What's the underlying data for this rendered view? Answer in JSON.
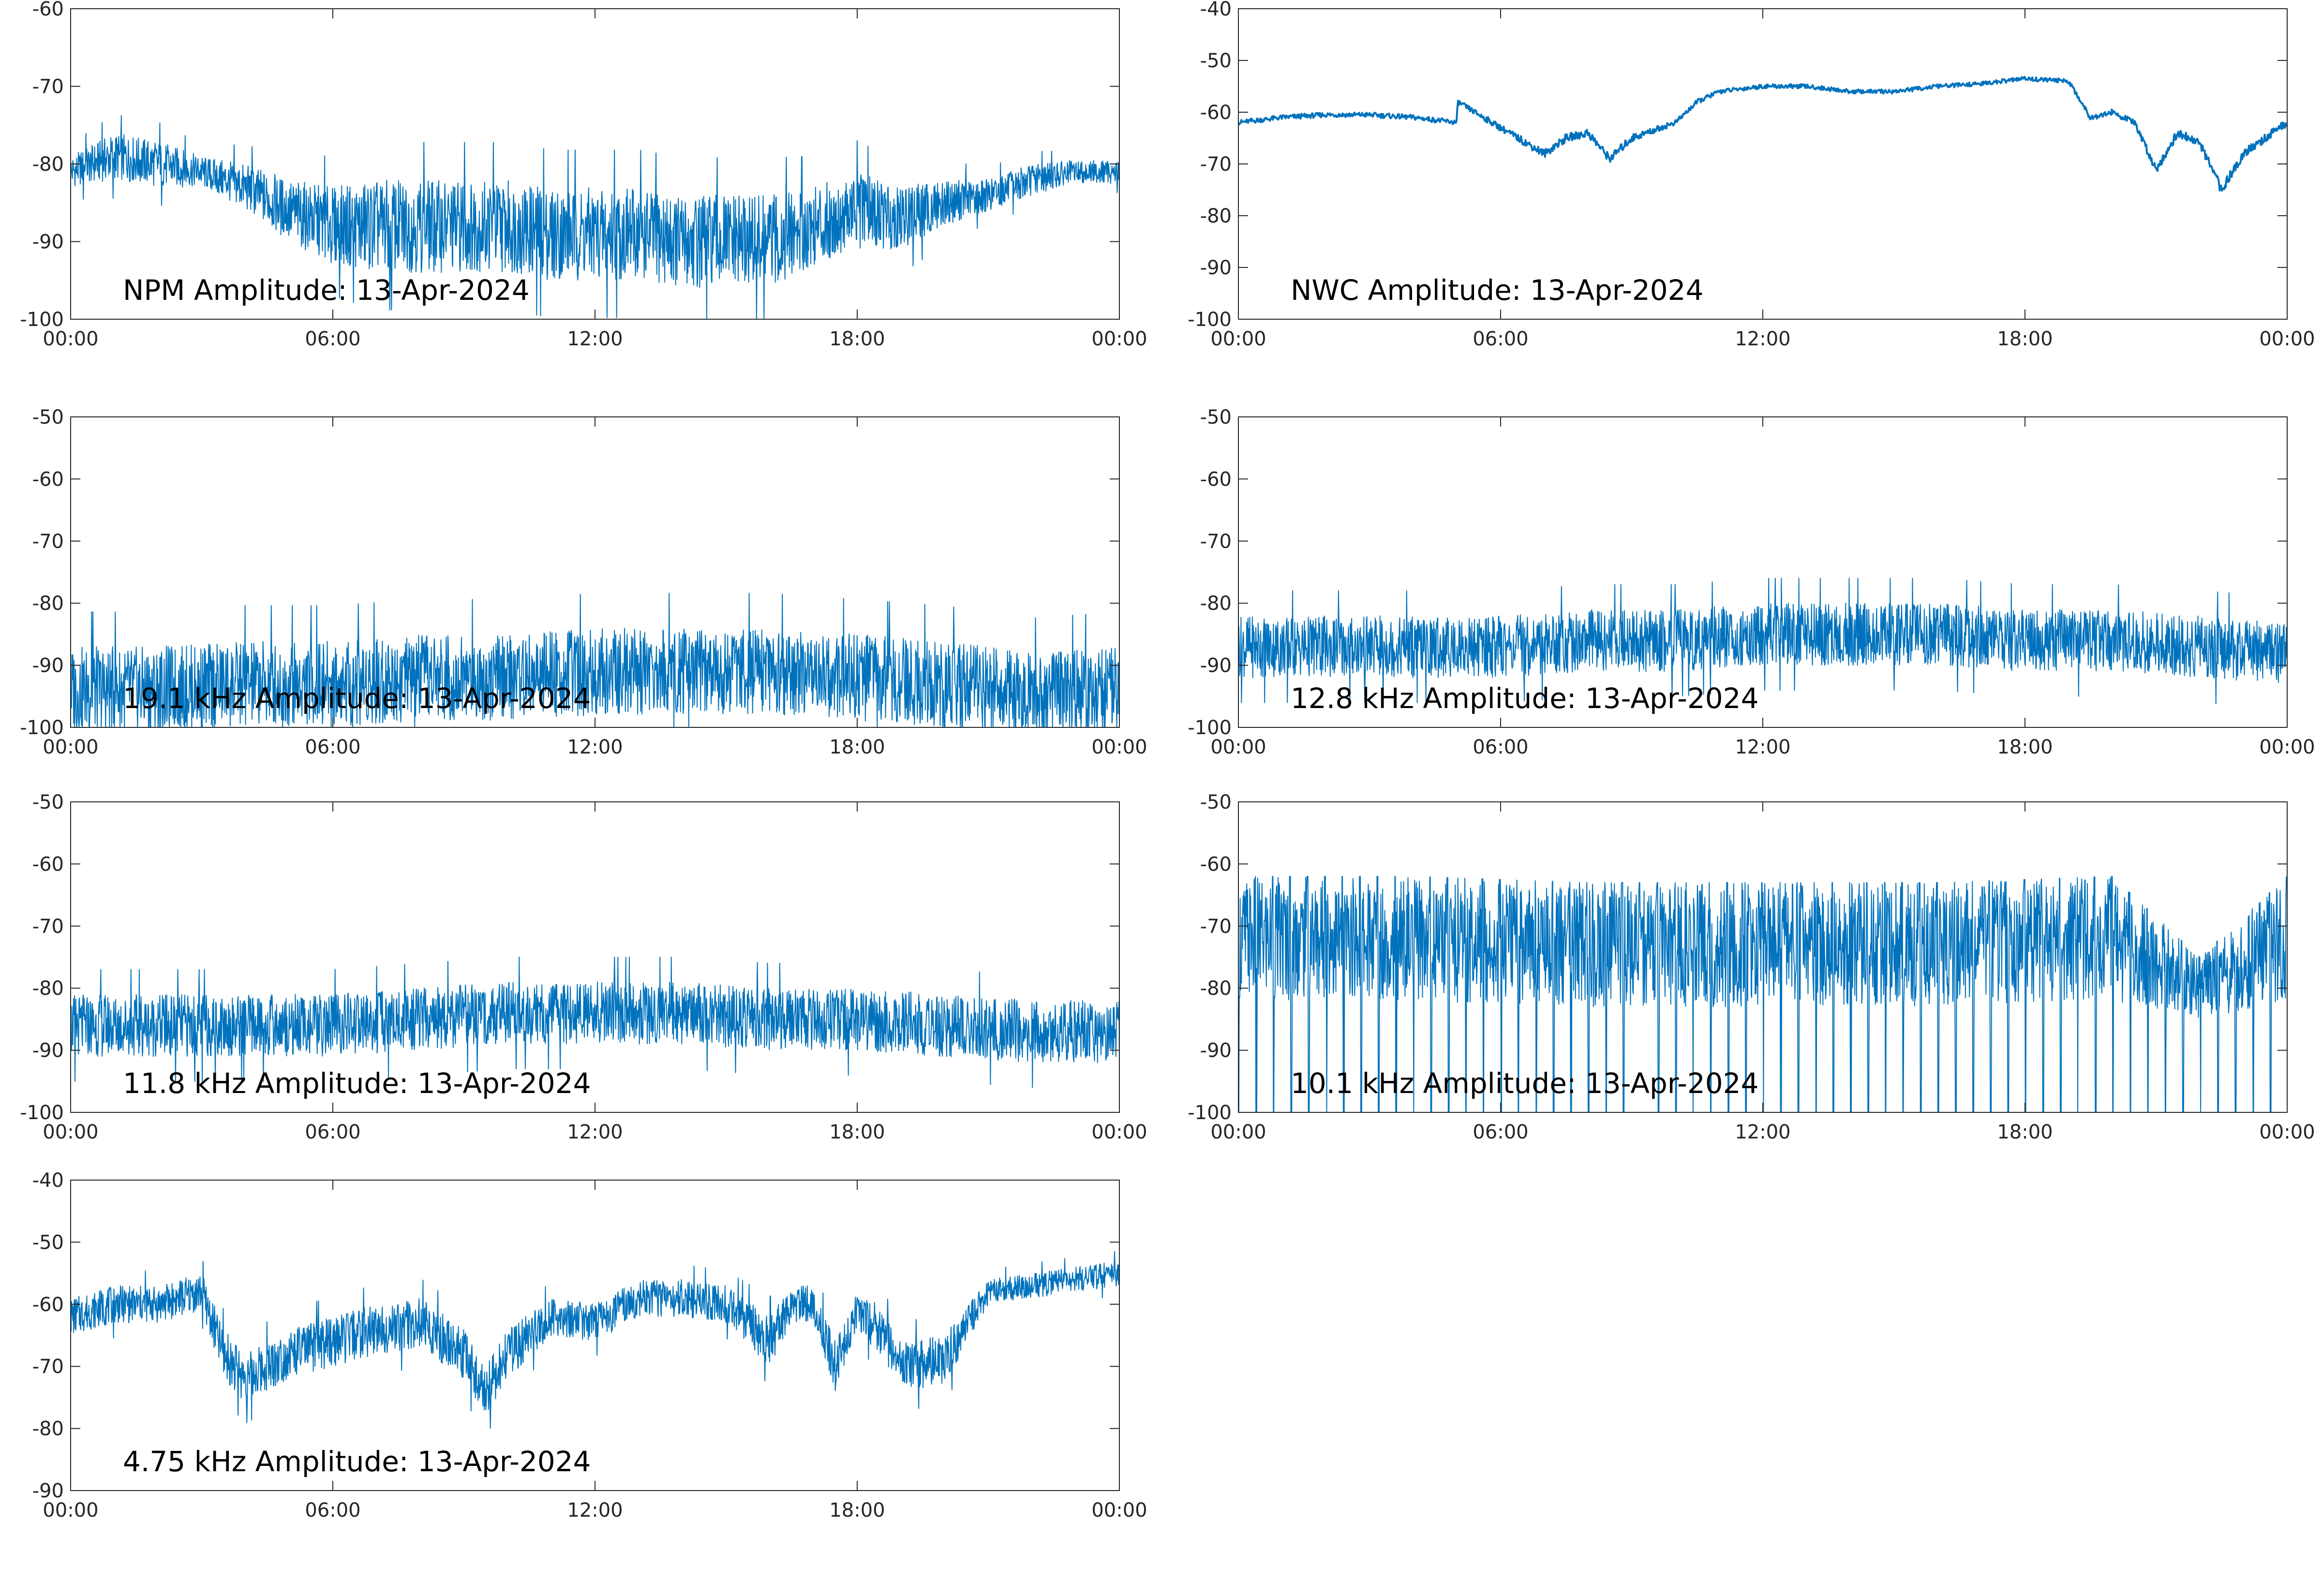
{
  "figure": {
    "series_color": "#0072BD",
    "axes_color": "#262626",
    "background": "#FFFFFF",
    "xtick_labels": [
      "00:00",
      "06:00",
      "12:00",
      "18:00",
      "00:00"
    ]
  },
  "chart_data": [
    {
      "type": "line",
      "title": "NPM Amplitude: 13-Apr-2024",
      "xlabel": "",
      "ylabel": "",
      "xlim": [
        "00:00",
        "24:00"
      ],
      "ylim": [
        -100,
        -60
      ],
      "yticks": [
        -100,
        -90,
        -80,
        -70,
        -60
      ],
      "grid": false,
      "style": "noisy-dense",
      "series": [
        {
          "x": [
            "00:00",
            "01:00",
            "02:00",
            "03:00",
            "04:00",
            "05:00",
            "06:00",
            "07:00",
            "08:00",
            "09:00",
            "10:00",
            "11:00",
            "12:00",
            "13:00",
            "14:00",
            "15:00",
            "16:00",
            "17:00",
            "18:00",
            "19:00",
            "20:00",
            "21:00",
            "22:00",
            "23:00",
            "24:00"
          ],
          "values": [
            -81,
            -79,
            -80,
            -81,
            -83,
            -86,
            -88,
            -88,
            -88,
            -88,
            -88,
            -89,
            -89,
            -89,
            -90,
            -90,
            -90,
            -88,
            -86,
            -87,
            -85,
            -84,
            -82,
            -81,
            -81
          ],
          "spread": [
            2,
            3,
            3,
            2,
            3,
            4,
            5,
            6,
            6,
            6,
            6,
            6,
            6,
            6,
            6,
            6,
            6,
            5,
            5,
            4,
            3,
            2,
            2,
            1.5,
            1.5
          ]
        }
      ]
    },
    {
      "type": "line",
      "title": "NWC Amplitude: 13-Apr-2024",
      "xlabel": "",
      "ylabel": "",
      "xlim": [
        "00:00",
        "24:00"
      ],
      "ylim": [
        -100,
        -40
      ],
      "yticks": [
        -100,
        -90,
        -80,
        -70,
        -60,
        -50,
        -40
      ],
      "grid": false,
      "style": "smooth",
      "series": [
        {
          "x": [
            "00:00",
            "01:00",
            "02:00",
            "03:00",
            "04:00",
            "05:00",
            "05:01",
            "06:00",
            "07:00",
            "07:30",
            "08:00",
            "08:30",
            "09:00",
            "10:00",
            "10:30",
            "11:00",
            "12:00",
            "13:00",
            "14:00",
            "15:00",
            "16:00",
            "17:00",
            "18:00",
            "19:00",
            "19:30",
            "20:00",
            "20:30",
            "21:00",
            "21:30",
            "22:00",
            "22:30",
            "23:00",
            "24:00"
          ],
          "values": [
            -62,
            -61,
            -60.5,
            -60.5,
            -61,
            -62,
            -58,
            -63,
            -68,
            -65,
            -64,
            -69,
            -65,
            -62,
            -58,
            -56,
            -55,
            -55,
            -56,
            -56,
            -55,
            -54.5,
            -53.5,
            -54,
            -61,
            -60,
            -62,
            -71,
            -64,
            -66,
            -75,
            -68,
            -62
          ],
          "spread": [
            0.6,
            0.6,
            0.6,
            0.6,
            0.6,
            0.6,
            0.6,
            0.8,
            1,
            1,
            1,
            1,
            1,
            0.6,
            0.6,
            0.5,
            0.5,
            0.5,
            0.5,
            0.5,
            0.5,
            0.5,
            0.5,
            0.5,
            0.7,
            0.7,
            0.7,
            1.2,
            1,
            1,
            1.2,
            1,
            1
          ]
        }
      ]
    },
    {
      "type": "line",
      "title": "19.1 kHz Amplitude: 13-Apr-2024",
      "xlabel": "",
      "ylabel": "",
      "xlim": [
        "00:00",
        "24:00"
      ],
      "ylim": [
        -100,
        -50
      ],
      "yticks": [
        -100,
        -90,
        -80,
        -70,
        -60,
        -50
      ],
      "grid": false,
      "style": "noisy-dense",
      "series": [
        {
          "x": [
            "00:00",
            "02:00",
            "04:00",
            "06:00",
            "08:00",
            "10:00",
            "12:00",
            "14:00",
            "16:00",
            "18:00",
            "20:00",
            "22:00",
            "24:00"
          ],
          "values": [
            -94,
            -94,
            -93,
            -93,
            -92,
            -92,
            -91,
            -91,
            -91,
            -92,
            -93,
            -95,
            -94
          ],
          "spread": [
            7,
            7,
            7,
            7,
            7,
            7,
            7,
            7,
            7,
            7,
            7,
            7,
            7
          ]
        }
      ]
    },
    {
      "type": "line",
      "title": "12.8 kHz Amplitude: 13-Apr-2024",
      "xlabel": "",
      "ylabel": "",
      "xlim": [
        "00:00",
        "24:00"
      ],
      "ylim": [
        -100,
        -50
      ],
      "yticks": [
        -100,
        -90,
        -80,
        -70,
        -60,
        -50
      ],
      "grid": false,
      "style": "noisy-dense",
      "series": [
        {
          "x": [
            "00:00",
            "02:00",
            "04:00",
            "06:00",
            "08:00",
            "10:00",
            "12:00",
            "14:00",
            "16:00",
            "18:00",
            "20:00",
            "22:00",
            "24:00"
          ],
          "values": [
            -87,
            -87,
            -87,
            -87,
            -86,
            -86,
            -85,
            -85,
            -85,
            -86,
            -86,
            -87,
            -88
          ],
          "spread": [
            5,
            5,
            5,
            5,
            5,
            5,
            5,
            5,
            5,
            5,
            5,
            5,
            5
          ]
        }
      ]
    },
    {
      "type": "line",
      "title": "11.8 kHz Amplitude: 13-Apr-2024",
      "xlabel": "",
      "ylabel": "",
      "xlim": [
        "00:00",
        "24:00"
      ],
      "ylim": [
        -100,
        -50
      ],
      "yticks": [
        -100,
        -90,
        -80,
        -70,
        -60,
        -50
      ],
      "grid": false,
      "style": "noisy-dense",
      "series": [
        {
          "x": [
            "00:00",
            "02:00",
            "04:00",
            "06:00",
            "08:00",
            "10:00",
            "12:00",
            "14:00",
            "16:00",
            "18:00",
            "20:00",
            "22:00",
            "24:00"
          ],
          "values": [
            -86,
            -86,
            -86,
            -86,
            -85,
            -84,
            -84,
            -84,
            -85,
            -85,
            -86,
            -87,
            -87
          ],
          "spread": [
            5,
            5,
            5,
            5,
            5,
            5,
            5,
            5,
            5,
            5,
            5,
            5,
            5
          ]
        }
      ]
    },
    {
      "type": "line",
      "title": "10.1 kHz Amplitude: 13-Apr-2024",
      "xlabel": "",
      "ylabel": "",
      "xlim": [
        "00:00",
        "24:00"
      ],
      "ylim": [
        -100,
        -50
      ],
      "yticks": [
        -100,
        -90,
        -80,
        -70,
        -60,
        -50
      ],
      "grid": false,
      "style": "bursty",
      "series": [
        {
          "x": [
            "00:00",
            "04:00",
            "08:00",
            "12:00",
            "16:00",
            "20:00",
            "22:00",
            "24:00"
          ],
          "values": [
            -72,
            -72,
            -73,
            -73,
            -73,
            -72,
            -80,
            -72
          ],
          "spread": [
            10,
            10,
            10,
            10,
            10,
            10,
            5,
            10
          ]
        }
      ]
    },
    {
      "type": "line",
      "title": "4.75 kHz Amplitude: 13-Apr-2024",
      "xlabel": "",
      "ylabel": "",
      "xlim": [
        "00:00",
        "24:00"
      ],
      "ylim": [
        -90,
        -40
      ],
      "yticks": [
        -90,
        -80,
        -70,
        -60,
        -50,
        -40
      ],
      "grid": false,
      "style": "noisy-dense",
      "series": [
        {
          "x": [
            "00:00",
            "01:00",
            "02:00",
            "03:00",
            "03:30",
            "04:00",
            "05:00",
            "06:00",
            "07:00",
            "08:00",
            "09:00",
            "09:30",
            "10:00",
            "11:00",
            "12:00",
            "13:00",
            "14:00",
            "15:00",
            "16:00",
            "16:30",
            "17:00",
            "17:30",
            "18:00",
            "18:30",
            "19:00",
            "20:00",
            "21:00",
            "22:00",
            "23:00",
            "24:00"
          ],
          "values": [
            -62,
            -60,
            -60,
            -58,
            -68,
            -72,
            -68,
            -66,
            -64,
            -63,
            -68,
            -74,
            -68,
            -62,
            -63,
            -59,
            -59,
            -60,
            -66,
            -60,
            -60,
            -70,
            -61,
            -64,
            -70,
            -69,
            -58,
            -57,
            -56,
            -55
          ],
          "spread": [
            3,
            3,
            3,
            3,
            4,
            4,
            4,
            4,
            4,
            4,
            4,
            4,
            4,
            3,
            3,
            3,
            3,
            3,
            4,
            3,
            3,
            4,
            3,
            4,
            4,
            4,
            2,
            2,
            2,
            2
          ]
        }
      ]
    }
  ]
}
